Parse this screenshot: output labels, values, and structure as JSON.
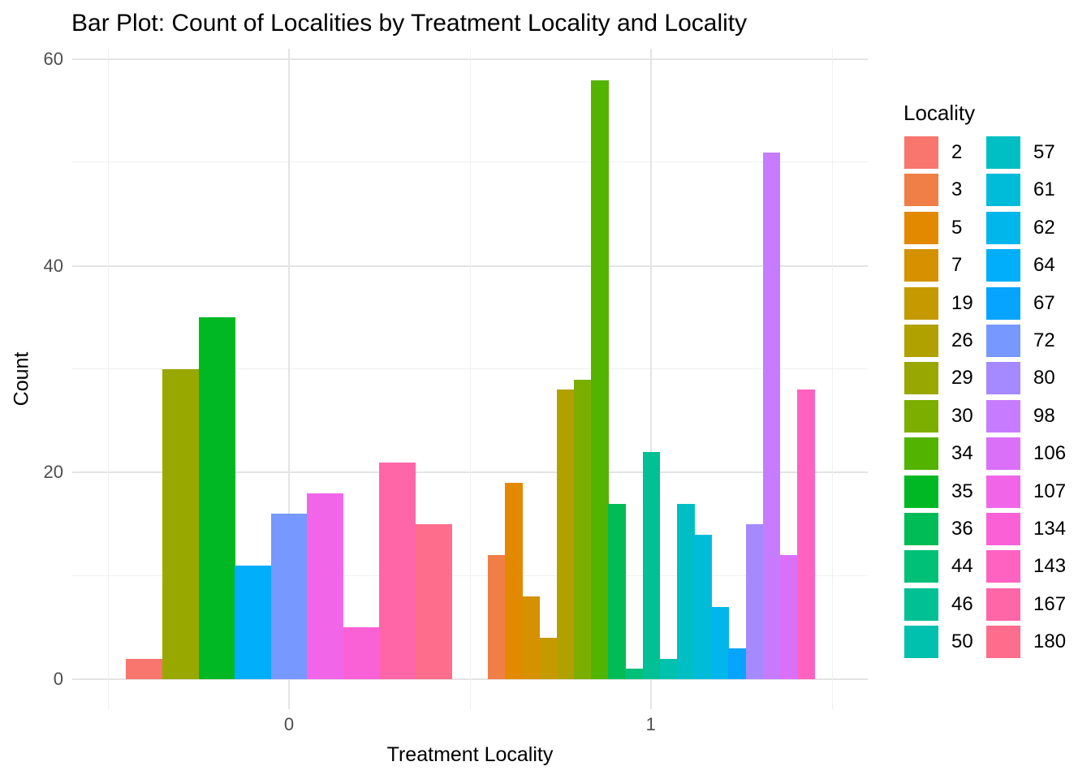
{
  "title": "Bar Plot: Count of Localities by Treatment Locality and Locality",
  "legend": {
    "title": "Locality",
    "entries": [
      {
        "label": "2",
        "color": "#F8766D"
      },
      {
        "label": "3",
        "color": "#EF7F46"
      },
      {
        "label": "5",
        "color": "#E38900"
      },
      {
        "label": "7",
        "color": "#D59100"
      },
      {
        "label": "19",
        "color": "#C49A00"
      },
      {
        "label": "26",
        "color": "#B0A100"
      },
      {
        "label": "29",
        "color": "#99A800"
      },
      {
        "label": "30",
        "color": "#7CAE00"
      },
      {
        "label": "34",
        "color": "#53B400"
      },
      {
        "label": "35",
        "color": "#00B823"
      },
      {
        "label": "36",
        "color": "#00BC56"
      },
      {
        "label": "44",
        "color": "#00BF77"
      },
      {
        "label": "46",
        "color": "#00C094"
      },
      {
        "label": "50",
        "color": "#00C1AD"
      },
      {
        "label": "57",
        "color": "#00BFC4"
      },
      {
        "label": "61",
        "color": "#00BCD9"
      },
      {
        "label": "62",
        "color": "#00B6EB"
      },
      {
        "label": "64",
        "color": "#00AEF9"
      },
      {
        "label": "67",
        "color": "#06A4FF"
      },
      {
        "label": "72",
        "color": "#7698FF"
      },
      {
        "label": "80",
        "color": "#A58AFF"
      },
      {
        "label": "98",
        "color": "#C77CFF"
      },
      {
        "label": "106",
        "color": "#DB70F8"
      },
      {
        "label": "107",
        "color": "#F166E9"
      },
      {
        "label": "134",
        "color": "#FB61D7"
      },
      {
        "label": "143",
        "color": "#FF62C1"
      },
      {
        "label": "167",
        "color": "#FF66A8"
      },
      {
        "label": "180",
        "color": "#FE6D8C"
      }
    ]
  },
  "chart_data": {
    "type": "bar",
    "title": "Bar Plot: Count of Localities by Treatment Locality and Locality",
    "xlabel": "Treatment Locality",
    "ylabel": "Count",
    "categories": [
      "0",
      "1"
    ],
    "ylim": [
      0,
      60
    ],
    "y_major_ticks": [
      0,
      20,
      40,
      60
    ],
    "y_minor_gridlines": [
      10,
      30,
      50
    ],
    "grid": true,
    "legend_title": "Locality",
    "legend_position": "right",
    "groups": [
      {
        "treatment": "0",
        "bars": [
          {
            "locality": "2",
            "count": 2,
            "color": "#F8766D"
          },
          {
            "locality": "29",
            "count": 30,
            "color": "#99A800"
          },
          {
            "locality": "35",
            "count": 35,
            "color": "#00B823"
          },
          {
            "locality": "64",
            "count": 11,
            "color": "#00AEF9"
          },
          {
            "locality": "72",
            "count": 16,
            "color": "#7698FF"
          },
          {
            "locality": "107",
            "count": 18,
            "color": "#F166E9"
          },
          {
            "locality": "134",
            "count": 5,
            "color": "#FB61D7"
          },
          {
            "locality": "167",
            "count": 21,
            "color": "#FF66A8"
          },
          {
            "locality": "180",
            "count": 15,
            "color": "#FE6D8C"
          }
        ]
      },
      {
        "treatment": "1",
        "bars": [
          {
            "locality": "3",
            "count": 12,
            "color": "#EF7F46"
          },
          {
            "locality": "5",
            "count": 19,
            "color": "#E38900"
          },
          {
            "locality": "7",
            "count": 8,
            "color": "#D59100"
          },
          {
            "locality": "19",
            "count": 4,
            "color": "#C49A00"
          },
          {
            "locality": "26",
            "count": 28,
            "color": "#B0A100"
          },
          {
            "locality": "30",
            "count": 29,
            "color": "#7CAE00"
          },
          {
            "locality": "34",
            "count": 58,
            "color": "#53B400"
          },
          {
            "locality": "36",
            "count": 17,
            "color": "#00BC56"
          },
          {
            "locality": "44",
            "count": 1,
            "color": "#00BF77"
          },
          {
            "locality": "46",
            "count": 22,
            "color": "#00C094"
          },
          {
            "locality": "50",
            "count": 2,
            "color": "#00C1AD"
          },
          {
            "locality": "57",
            "count": 17,
            "color": "#00BFC4"
          },
          {
            "locality": "61",
            "count": 14,
            "color": "#00BCD9"
          },
          {
            "locality": "62",
            "count": 7,
            "color": "#00B6EB"
          },
          {
            "locality": "67",
            "count": 3,
            "color": "#06A4FF"
          },
          {
            "locality": "80",
            "count": 15,
            "color": "#A58AFF"
          },
          {
            "locality": "98",
            "count": 51,
            "color": "#C77CFF"
          },
          {
            "locality": "106",
            "count": 12,
            "color": "#DB70F8"
          },
          {
            "locality": "143",
            "count": 28,
            "color": "#FF62C1"
          }
        ]
      }
    ]
  },
  "colors": {
    "background": "#FFFFFF",
    "grid_major": "#E4E4E4",
    "grid_minor": "#F0F0F0",
    "axis_text": "#4D4D4D",
    "text": "#000000"
  }
}
